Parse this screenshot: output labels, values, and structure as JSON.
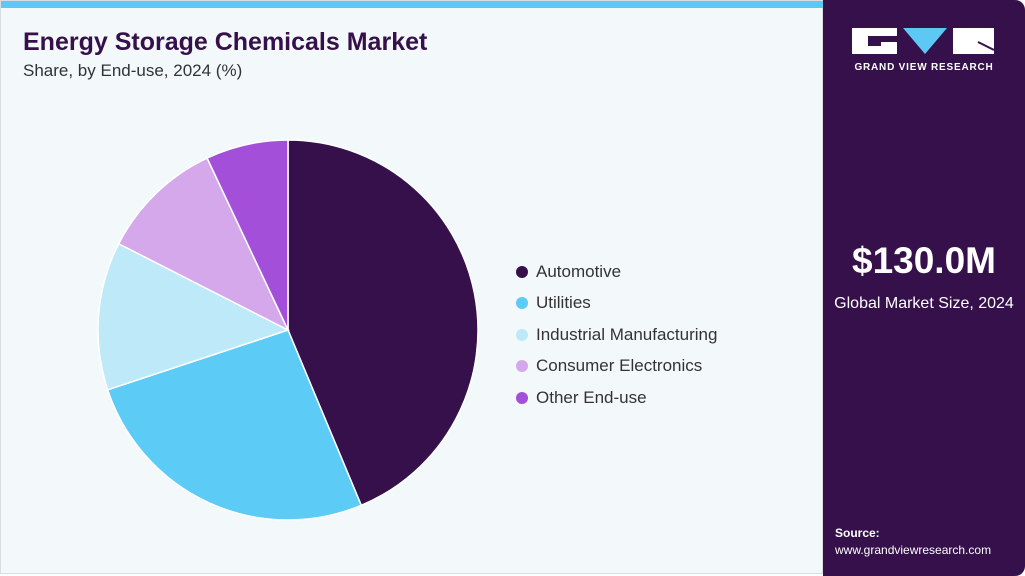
{
  "chart_data": {
    "type": "pie",
    "title": "Energy Storage Chemicals Market",
    "subtitle": "Share, by End-use, 2024 (%)",
    "categories": [
      "Automotive",
      "Utilities",
      "Industrial Manufacturing",
      "Consumer Electronics",
      "Other End-use"
    ],
    "values": [
      43.7,
      26.2,
      12.6,
      10.5,
      7.0
    ],
    "colors": [
      "#35104a",
      "#5ccbf6",
      "#bde9f9",
      "#d5a8ec",
      "#a34fd9"
    ],
    "legend_position": "right"
  },
  "sidebar": {
    "brand": "GRAND VIEW RESEARCH",
    "market_size": "$130.0M",
    "market_size_label": "Global Market Size, 2024",
    "source_label": "Source:",
    "source_url": "www.grandviewresearch.com"
  }
}
